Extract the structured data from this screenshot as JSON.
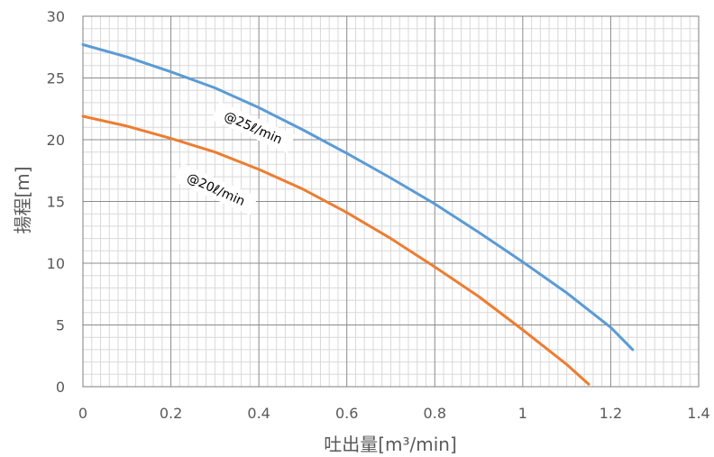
{
  "chart_data": {
    "type": "line",
    "xlabel": "吐出量[m³/min]",
    "ylabel": "揚程[m]",
    "xlim": [
      0,
      1.4
    ],
    "ylim": [
      0,
      30
    ],
    "xticks": [
      "0",
      "0.2",
      "0.4",
      "0.6",
      "0.8",
      "1",
      "1.2",
      "1.4"
    ],
    "yticks": [
      "0",
      "5",
      "10",
      "15",
      "20",
      "25",
      "30"
    ],
    "grid": true,
    "minor_grid": true,
    "legend": "none",
    "series": [
      {
        "name": "@25ℓ/min",
        "color": "#5B9BD5",
        "x": [
          0,
          0.1,
          0.2,
          0.3,
          0.4,
          0.5,
          0.6,
          0.7,
          0.8,
          0.9,
          1.0,
          1.1,
          1.2,
          1.25
        ],
        "y": [
          27.7,
          26.7,
          25.5,
          24.2,
          22.6,
          20.8,
          18.9,
          16.9,
          14.8,
          12.5,
          10.1,
          7.6,
          4.8,
          3.0
        ]
      },
      {
        "name": "@20ℓ/min",
        "color": "#ED7D31",
        "x": [
          0,
          0.1,
          0.2,
          0.3,
          0.4,
          0.5,
          0.6,
          0.7,
          0.8,
          0.9,
          1.0,
          1.1,
          1.15
        ],
        "y": [
          21.9,
          21.1,
          20.1,
          19.0,
          17.6,
          16.0,
          14.1,
          12.0,
          9.7,
          7.3,
          4.6,
          1.8,
          0.2
        ]
      }
    ],
    "annotations": [
      {
        "text": "@25ℓ/min",
        "x": 0.385,
        "y": 20.8,
        "angle": 24
      },
      {
        "text": "@20ℓ/min",
        "x": 0.3,
        "y": 15.8,
        "angle": 24
      }
    ]
  }
}
